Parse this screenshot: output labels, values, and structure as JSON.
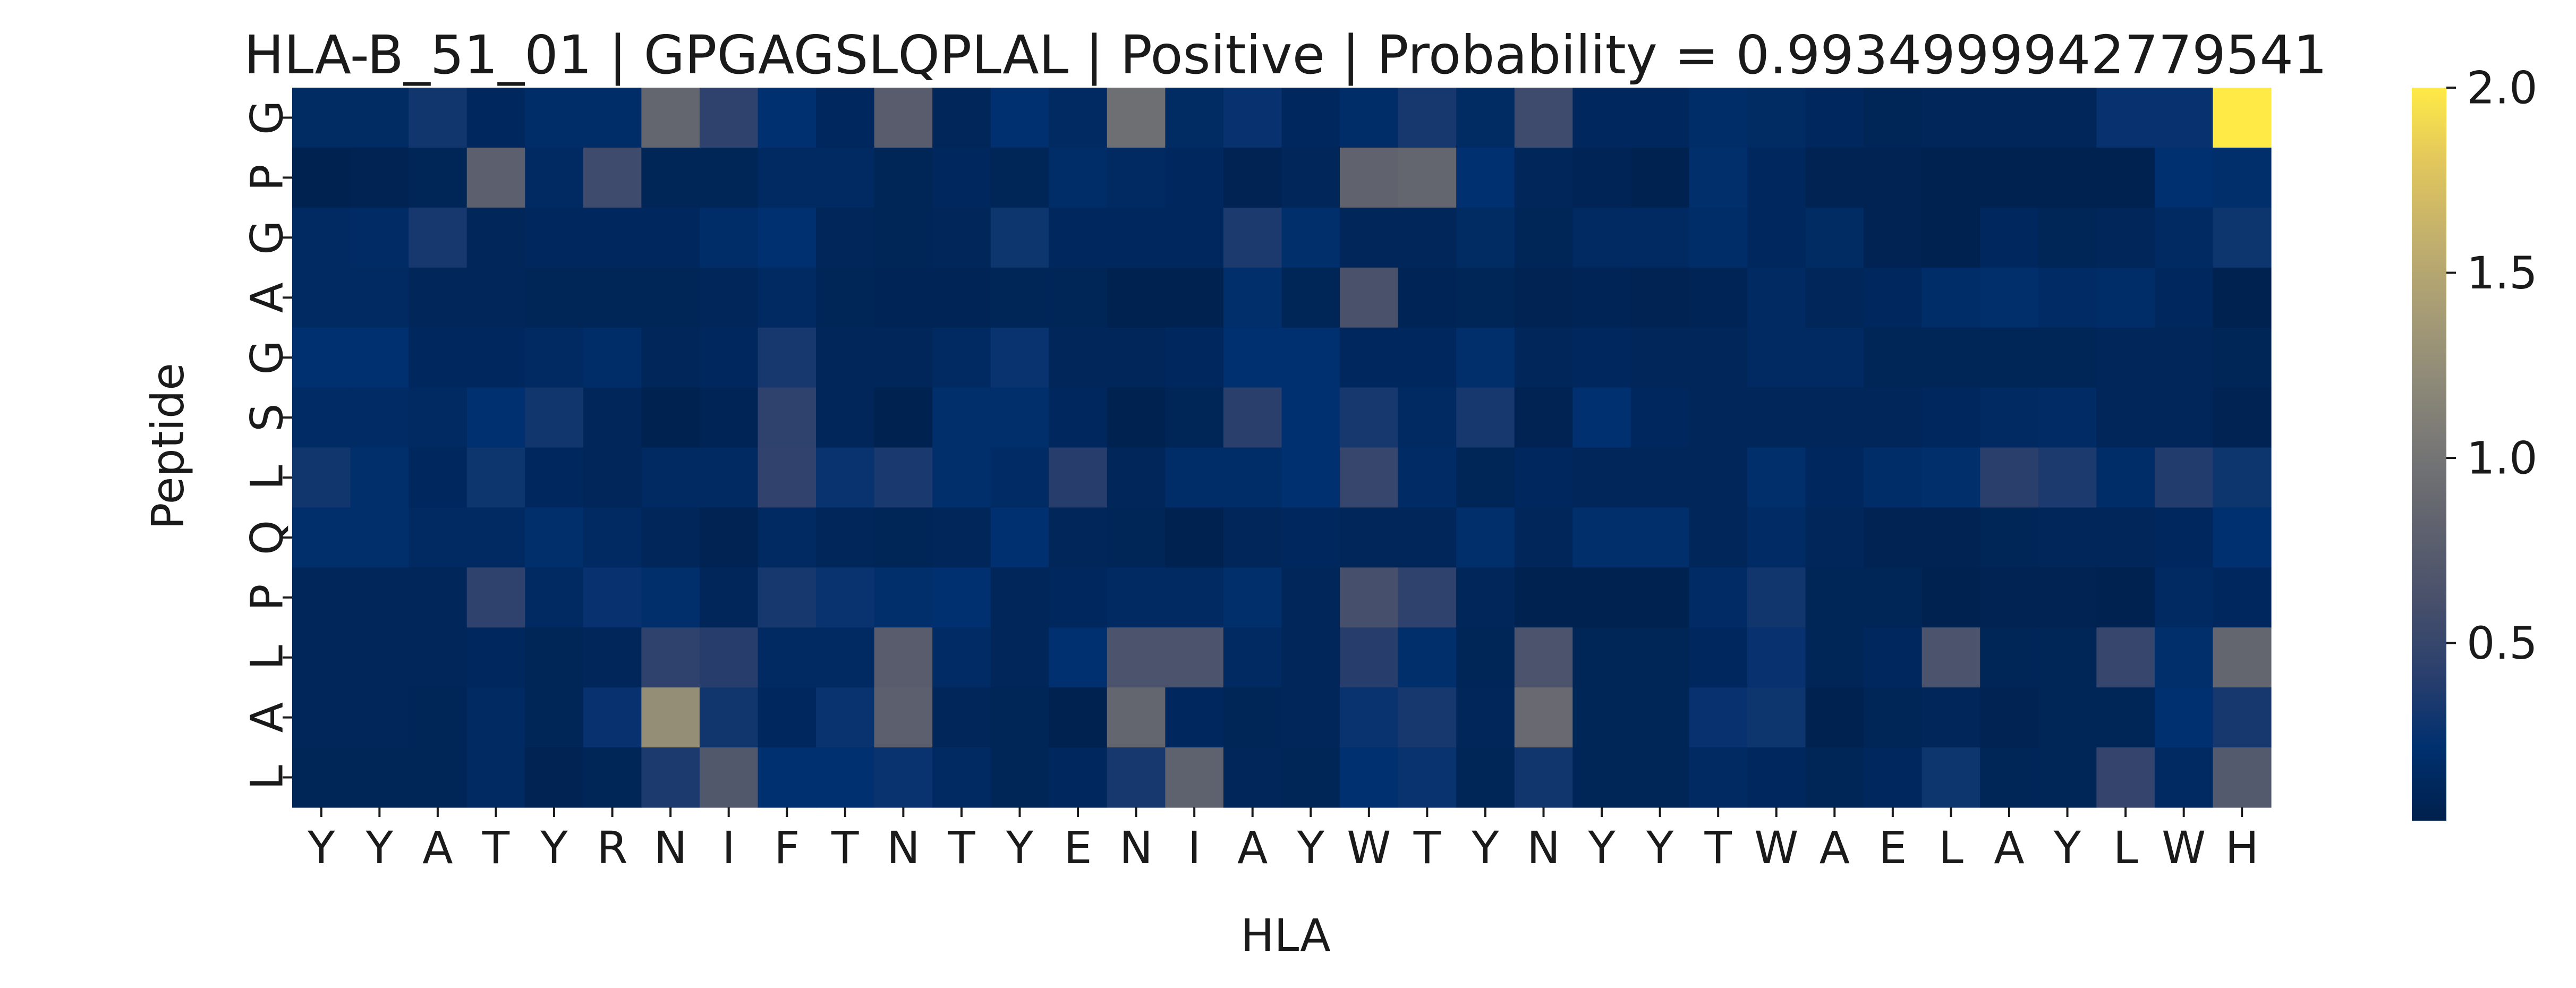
{
  "chart_data": {
    "type": "heatmap",
    "title": "HLA-B_51_01 | GPGAGSLQPLAL | Positive | Probability = 0.9934999942779541",
    "xlabel": "HLA",
    "ylabel": "Peptide",
    "x_categories": [
      "Y",
      "Y",
      "A",
      "T",
      "Y",
      "R",
      "N",
      "I",
      "F",
      "T",
      "N",
      "T",
      "Y",
      "E",
      "N",
      "I",
      "A",
      "Y",
      "W",
      "T",
      "Y",
      "N",
      "Y",
      "Y",
      "T",
      "W",
      "A",
      "E",
      "L",
      "A",
      "Y",
      "L",
      "W",
      "H"
    ],
    "y_categories": [
      "G",
      "P",
      "G",
      "A",
      "G",
      "S",
      "L",
      "Q",
      "P",
      "L",
      "A",
      "L"
    ],
    "colorbar": {
      "colormap": "cividis",
      "vmin": 0.02,
      "vmax": 2.0,
      "ticks": [
        0.5,
        1.0,
        1.5,
        2.0
      ],
      "tick_labels": [
        "0.5",
        "1.0",
        "1.5",
        "2.0"
      ]
    },
    "values": [
      [
        0.15,
        0.15,
        0.3,
        0.12,
        0.18,
        0.18,
        0.85,
        0.45,
        0.22,
        0.12,
        0.75,
        0.1,
        0.22,
        0.14,
        0.95,
        0.15,
        0.25,
        0.12,
        0.18,
        0.32,
        0.15,
        0.55,
        0.12,
        0.12,
        0.18,
        0.15,
        0.12,
        0.08,
        0.1,
        0.1,
        0.1,
        0.25,
        0.25,
        2.0
      ],
      [
        0.05,
        0.06,
        0.08,
        0.78,
        0.14,
        0.55,
        0.08,
        0.08,
        0.14,
        0.14,
        0.08,
        0.12,
        0.08,
        0.18,
        0.14,
        0.12,
        0.06,
        0.1,
        0.82,
        0.85,
        0.22,
        0.1,
        0.07,
        0.05,
        0.2,
        0.12,
        0.06,
        0.06,
        0.05,
        0.05,
        0.05,
        0.05,
        0.22,
        0.2
      ],
      [
        0.14,
        0.16,
        0.32,
        0.1,
        0.12,
        0.12,
        0.12,
        0.18,
        0.22,
        0.1,
        0.08,
        0.1,
        0.28,
        0.12,
        0.12,
        0.12,
        0.35,
        0.2,
        0.1,
        0.1,
        0.15,
        0.09,
        0.14,
        0.14,
        0.18,
        0.12,
        0.15,
        0.06,
        0.05,
        0.12,
        0.08,
        0.1,
        0.14,
        0.28
      ],
      [
        0.14,
        0.14,
        0.1,
        0.1,
        0.09,
        0.08,
        0.08,
        0.1,
        0.14,
        0.08,
        0.07,
        0.07,
        0.08,
        0.08,
        0.05,
        0.05,
        0.2,
        0.08,
        0.62,
        0.07,
        0.09,
        0.06,
        0.07,
        0.06,
        0.07,
        0.14,
        0.1,
        0.12,
        0.18,
        0.2,
        0.16,
        0.18,
        0.12,
        0.05
      ],
      [
        0.22,
        0.22,
        0.12,
        0.12,
        0.14,
        0.18,
        0.1,
        0.12,
        0.32,
        0.1,
        0.1,
        0.14,
        0.26,
        0.1,
        0.1,
        0.12,
        0.22,
        0.22,
        0.12,
        0.12,
        0.2,
        0.1,
        0.12,
        0.1,
        0.1,
        0.14,
        0.14,
        0.09,
        0.09,
        0.09,
        0.09,
        0.1,
        0.1,
        0.08
      ],
      [
        0.16,
        0.16,
        0.14,
        0.22,
        0.3,
        0.1,
        0.05,
        0.07,
        0.45,
        0.1,
        0.04,
        0.2,
        0.2,
        0.12,
        0.05,
        0.08,
        0.42,
        0.22,
        0.32,
        0.14,
        0.32,
        0.06,
        0.22,
        0.12,
        0.1,
        0.1,
        0.1,
        0.1,
        0.12,
        0.14,
        0.16,
        0.1,
        0.1,
        0.06
      ],
      [
        0.3,
        0.2,
        0.12,
        0.28,
        0.12,
        0.1,
        0.14,
        0.14,
        0.46,
        0.26,
        0.34,
        0.2,
        0.16,
        0.4,
        0.1,
        0.18,
        0.18,
        0.22,
        0.5,
        0.16,
        0.08,
        0.12,
        0.1,
        0.1,
        0.1,
        0.2,
        0.12,
        0.18,
        0.2,
        0.42,
        0.35,
        0.18,
        0.38,
        0.28
      ],
      [
        0.2,
        0.2,
        0.14,
        0.14,
        0.2,
        0.14,
        0.1,
        0.06,
        0.14,
        0.1,
        0.08,
        0.1,
        0.22,
        0.1,
        0.08,
        0.04,
        0.1,
        0.12,
        0.1,
        0.1,
        0.2,
        0.1,
        0.2,
        0.2,
        0.1,
        0.16,
        0.1,
        0.06,
        0.06,
        0.08,
        0.1,
        0.1,
        0.12,
        0.22
      ],
      [
        0.1,
        0.1,
        0.1,
        0.45,
        0.14,
        0.25,
        0.2,
        0.1,
        0.32,
        0.26,
        0.2,
        0.22,
        0.1,
        0.12,
        0.14,
        0.14,
        0.2,
        0.1,
        0.6,
        0.45,
        0.1,
        0.05,
        0.05,
        0.05,
        0.16,
        0.3,
        0.08,
        0.08,
        0.05,
        0.06,
        0.06,
        0.05,
        0.14,
        0.12
      ],
      [
        0.1,
        0.1,
        0.1,
        0.12,
        0.08,
        0.1,
        0.45,
        0.4,
        0.14,
        0.14,
        0.75,
        0.16,
        0.1,
        0.22,
        0.65,
        0.65,
        0.14,
        0.1,
        0.4,
        0.2,
        0.08,
        0.65,
        0.08,
        0.08,
        0.12,
        0.25,
        0.08,
        0.12,
        0.65,
        0.08,
        0.08,
        0.5,
        0.2,
        0.85
      ],
      [
        0.1,
        0.1,
        0.08,
        0.14,
        0.08,
        0.25,
        1.25,
        0.3,
        0.12,
        0.26,
        0.78,
        0.1,
        0.08,
        0.05,
        0.85,
        0.12,
        0.08,
        0.1,
        0.26,
        0.32,
        0.1,
        0.9,
        0.08,
        0.08,
        0.25,
        0.28,
        0.05,
        0.08,
        0.1,
        0.06,
        0.08,
        0.08,
        0.22,
        0.32
      ],
      [
        0.08,
        0.08,
        0.08,
        0.14,
        0.06,
        0.08,
        0.35,
        0.7,
        0.22,
        0.22,
        0.26,
        0.14,
        0.08,
        0.12,
        0.32,
        0.8,
        0.1,
        0.08,
        0.22,
        0.26,
        0.08,
        0.3,
        0.08,
        0.08,
        0.14,
        0.12,
        0.08,
        0.12,
        0.28,
        0.08,
        0.08,
        0.48,
        0.14,
        0.72
      ]
    ]
  }
}
